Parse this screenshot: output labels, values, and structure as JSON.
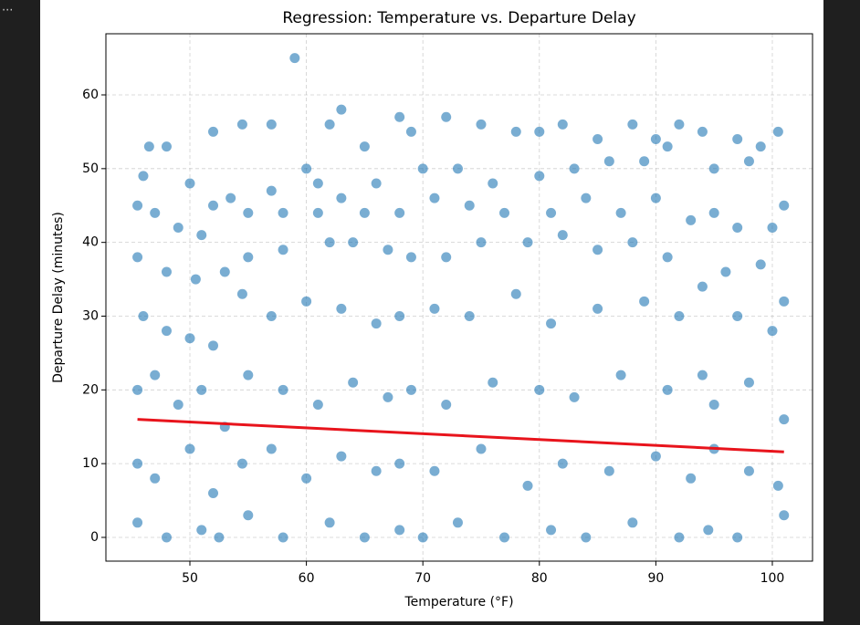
{
  "cell_marker": "...",
  "chart_data": {
    "type": "scatter",
    "title": "Regression: Temperature vs. Departure Delay",
    "x_label": "Temperature (°F)",
    "y_label": "Departure Delay (minutes)",
    "xlim": [
      42.79,
      103.45
    ],
    "ylim": [
      -3.22,
      68.29
    ],
    "xticks": [
      50,
      60,
      70,
      80,
      90,
      100
    ],
    "yticks": [
      0,
      10,
      20,
      30,
      40,
      50,
      60
    ],
    "grid": true,
    "series": [
      {
        "type": "scatter",
        "color": "#1f77b4",
        "x": [
          59,
          63,
          72,
          68,
          62,
          54.5,
          57,
          75,
          82,
          88,
          92,
          52,
          80,
          94,
          100.5,
          46.5,
          48,
          60,
          65,
          69,
          78,
          85,
          90,
          97,
          99,
          46,
          50,
          53.5,
          57,
          61,
          66,
          70,
          73,
          76,
          80,
          83,
          86,
          89,
          91,
          95,
          98,
          101,
          45.5,
          47,
          49,
          51,
          52,
          55,
          58,
          61,
          63,
          65,
          68,
          71,
          74,
          77,
          81,
          84,
          87,
          90,
          93,
          95,
          97,
          100,
          45.5,
          48,
          50.5,
          53,
          55,
          58,
          62,
          64,
          67,
          69,
          72,
          75,
          79,
          82,
          85,
          88,
          91,
          94,
          96,
          99,
          101,
          46,
          48,
          50,
          52,
          54.5,
          57,
          60,
          63,
          66,
          68,
          71,
          74,
          78,
          81,
          85,
          89,
          92,
          94,
          97,
          100,
          45.5,
          47,
          49,
          51,
          53,
          55,
          58,
          61,
          64,
          67,
          69,
          72,
          76,
          80,
          83,
          87,
          91,
          95,
          98,
          101,
          45.5,
          47,
          50,
          52,
          54.5,
          57,
          60,
          63,
          66,
          68,
          71,
          75,
          79,
          82,
          86,
          90,
          93,
          95,
          98,
          100.5,
          45.5,
          48,
          51,
          52.5,
          55,
          58,
          62,
          65,
          68,
          70,
          73,
          77,
          81,
          84,
          88,
          92,
          94.5,
          97,
          101
        ],
        "values": [
          65,
          58,
          57,
          57,
          56,
          56,
          56,
          56,
          56,
          56,
          56,
          55,
          55,
          55,
          55,
          53,
          53,
          50,
          53,
          55,
          55,
          54,
          54,
          54,
          53,
          49,
          48,
          46,
          47,
          48,
          48,
          50,
          50,
          48,
          49,
          50,
          51,
          51,
          53,
          50,
          51,
          45,
          45,
          44,
          42,
          41,
          45,
          44,
          44,
          44,
          46,
          44,
          44,
          46,
          45,
          44,
          44,
          46,
          44,
          46,
          43,
          44,
          42,
          42,
          38,
          36,
          35,
          36,
          38,
          39,
          40,
          40,
          39,
          38,
          38,
          40,
          40,
          41,
          39,
          40,
          38,
          34,
          36,
          37,
          32,
          30,
          28,
          27,
          26,
          33,
          30,
          32,
          31,
          29,
          30,
          31,
          30,
          33,
          29,
          31,
          32,
          30,
          22,
          30,
          28,
          20,
          22,
          18,
          20,
          15,
          22,
          20,
          18,
          21,
          19,
          20,
          18,
          21,
          20,
          19,
          22,
          20,
          18,
          21,
          16,
          10,
          8,
          12,
          6,
          10,
          12,
          8,
          11,
          9,
          10,
          9,
          12,
          7,
          10,
          9,
          11,
          8,
          12,
          9,
          7,
          2,
          0,
          1,
          0,
          3,
          0,
          2,
          0,
          1,
          0,
          2,
          0,
          1,
          0,
          2,
          0,
          1,
          0,
          3
        ]
      },
      {
        "type": "line",
        "color": "#e8141c",
        "x": [
          45.5,
          101
        ],
        "values": [
          16,
          11.6
        ]
      }
    ]
  }
}
